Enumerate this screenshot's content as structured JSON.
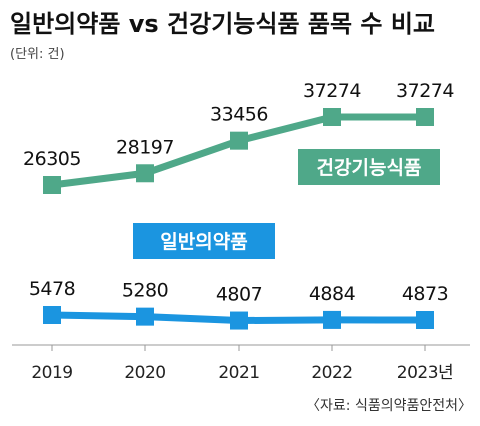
{
  "title": "일반의약품 vs 건강기능식품 품목 수 비교",
  "subtitle": "(단위: 건)",
  "source": "〈자료: 식품의약품안전처〉",
  "colors": {
    "green": "#4fa889",
    "blue": "#1b95e0"
  },
  "chart_data": {
    "type": "line",
    "categories": [
      "2019",
      "2020",
      "2021",
      "2022",
      "2023년"
    ],
    "series": [
      {
        "name": "건강기능식품",
        "values": [
          26305,
          28197,
          33456,
          37274,
          37274
        ],
        "color": "#4fa889"
      },
      {
        "name": "일반의약품",
        "values": [
          5478,
          5280,
          4807,
          4884,
          4873
        ],
        "color": "#1b95e0"
      }
    ]
  }
}
